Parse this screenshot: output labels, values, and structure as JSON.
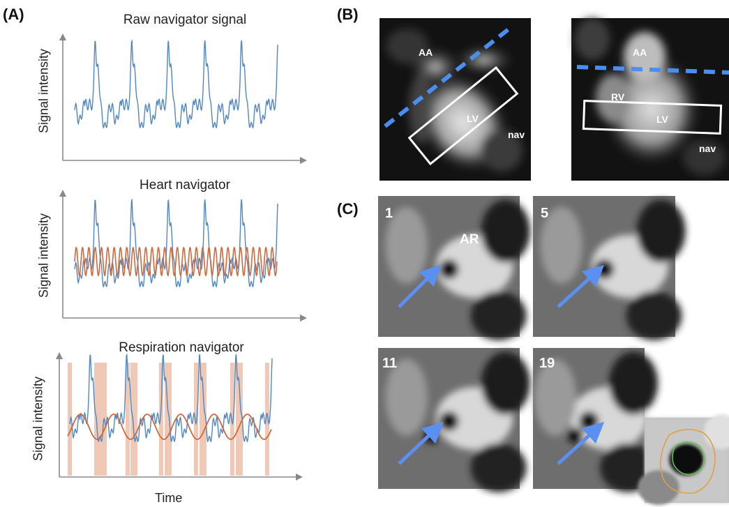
{
  "panels": {
    "a_letter": "(A)",
    "b_letter": "(B)",
    "c_letter": "(C)"
  },
  "plots": [
    {
      "title": "Raw navigator signal",
      "ylabel": "Signal intensity"
    },
    {
      "title": "Heart navigator",
      "ylabel": "Signal intensity"
    },
    {
      "title": "Respiration navigator",
      "ylabel": "Signal intensity",
      "xlabel": "Time"
    }
  ],
  "panel_b": {
    "left": {
      "aa": "AA",
      "lv": "LV",
      "nav": "nav"
    },
    "right": {
      "aa": "AA",
      "rv": "RV",
      "lv": "LV",
      "nav": "nav"
    }
  },
  "panel_c": {
    "frames": [
      "1",
      "5",
      "11",
      "19"
    ],
    "ar_label": "AR"
  },
  "colors": {
    "signal_blue": "#4f86c6",
    "fit_orange": "#d0683a",
    "band_orange": "#e9b79c",
    "nav_dash_blue": "#4a8ef0",
    "arrow_blue": "#5b8ff0",
    "contour_orange": "#e0a040",
    "contour_green": "#5ec24a"
  },
  "chart_data": [
    {
      "type": "line",
      "title": "Raw navigator signal",
      "ylabel": "Signal intensity",
      "series": [
        {
          "name": "",
          "peaks": 6
        }
      ]
    },
    {
      "type": "line",
      "title": "Heart navigator",
      "ylabel": "Signal intensity",
      "series": [
        {
          "name": "",
          "peaks": 6
        },
        {
          "name": "",
          "oscillations": 32
        }
      ]
    },
    {
      "type": "line",
      "title": "Respiration navigator",
      "ylabel": "Signal intensity",
      "xlabel": "Time",
      "series": [
        {
          "name": "",
          "peaks": 6
        },
        {
          "name": "",
          "oscillations": 6
        }
      ]
    }
  ]
}
